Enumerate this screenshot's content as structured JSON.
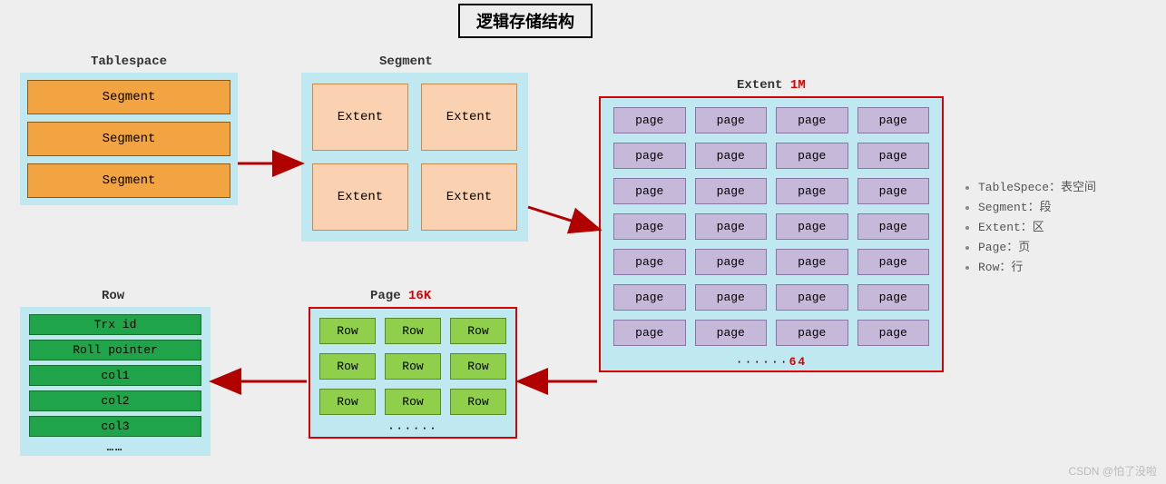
{
  "title": "逻辑存储结构",
  "colors": {
    "page_bg": "#eeeeee",
    "container_bg": "#bfe8f0",
    "segment_fill": "#f2a443",
    "segment_border": "#8a5a12",
    "extent_fill": "#fbd2b1",
    "extent_border": "#c98a4b",
    "page_fill": "#c6b8d8",
    "page_border": "#8877a5",
    "row_fill": "#8fcf4b",
    "row_border": "#5a8a28",
    "rowfield_fill": "#1fa44a",
    "rowfield_border": "#146e31",
    "accent_red": "#d80000",
    "arrow": "#b00000"
  },
  "tablespace": {
    "label": "Tablespace",
    "items": [
      "Segment",
      "Segment",
      "Segment"
    ]
  },
  "segment": {
    "label": "Segment",
    "items": [
      "Extent",
      "Extent",
      "Extent",
      "Extent"
    ]
  },
  "extent": {
    "label_prefix": "Extent ",
    "label_size": "1M",
    "page_label": "page",
    "rows": 7,
    "cols": 4,
    "footer_prefix": "······",
    "footer_count": "64"
  },
  "page": {
    "label_prefix": "Page ",
    "label_size": "16K",
    "row_label": "Row",
    "rows": 3,
    "cols": 3,
    "footer": "······"
  },
  "row": {
    "label": "Row",
    "fields": [
      "Trx id",
      "Roll pointer",
      "col1",
      "col2",
      "col3"
    ],
    "footer": "……"
  },
  "legend": [
    "TableSpece：表空间",
    "Segment：段",
    "Extent：区",
    "Page：页",
    "Row：行"
  ],
  "watermark": "CSDN @怕了没啦"
}
